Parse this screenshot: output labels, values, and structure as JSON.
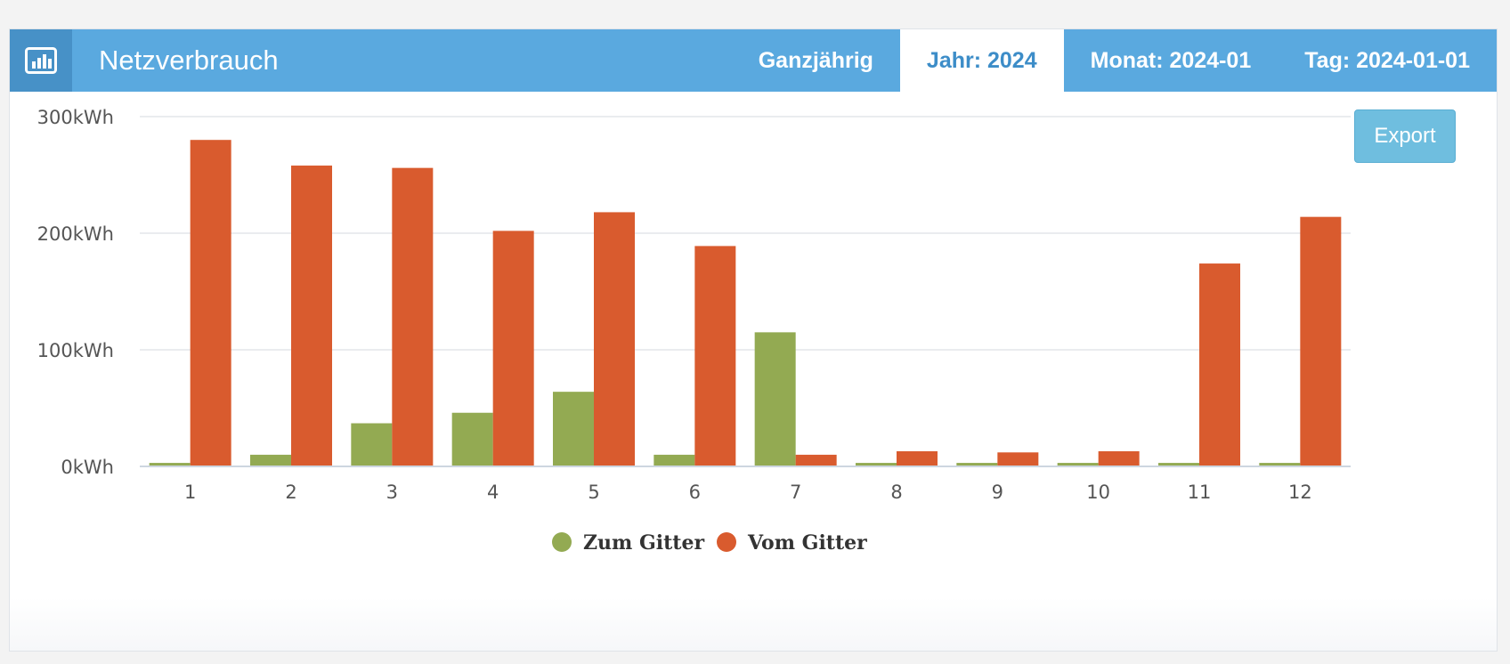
{
  "header": {
    "title": "Netzverbrauch",
    "icon": "bar-chart-icon",
    "tabs": [
      {
        "label": "Ganzjährig",
        "active": false
      },
      {
        "label": "Jahr: 2024",
        "active": true
      },
      {
        "label": "Monat: 2024-01",
        "active": false
      },
      {
        "label": "Tag: 2024-01-01",
        "active": false
      }
    ]
  },
  "export_label": "Export",
  "colors": {
    "header_bg": "#5aa9df",
    "icon_bg": "#4791c7",
    "active_tab_text": "#3d8dc8",
    "export_bg": "#6fbedf"
  },
  "chart_data": {
    "type": "bar",
    "title": "",
    "xlabel": "",
    "ylabel": "",
    "categories": [
      "1",
      "2",
      "3",
      "4",
      "5",
      "6",
      "7",
      "8",
      "9",
      "10",
      "11",
      "12"
    ],
    "series": [
      {
        "name": "Zum Gitter",
        "color": "#93aa52",
        "values": [
          3,
          10,
          37,
          46,
          64,
          10,
          115,
          3,
          3,
          3,
          3,
          3
        ]
      },
      {
        "name": "Vom Gitter",
        "color": "#d95b2e",
        "values": [
          280,
          258,
          256,
          202,
          218,
          189,
          10,
          13,
          12,
          13,
          174,
          214
        ]
      }
    ],
    "ylim": [
      0,
      300
    ],
    "yticks": [
      {
        "value": 0,
        "label": "0kWh"
      },
      {
        "value": 100,
        "label": "100kWh"
      },
      {
        "value": 200,
        "label": "200kWh"
      },
      {
        "value": 300,
        "label": "300kWh"
      }
    ],
    "grid": true,
    "legend_position": "bottom-center"
  }
}
